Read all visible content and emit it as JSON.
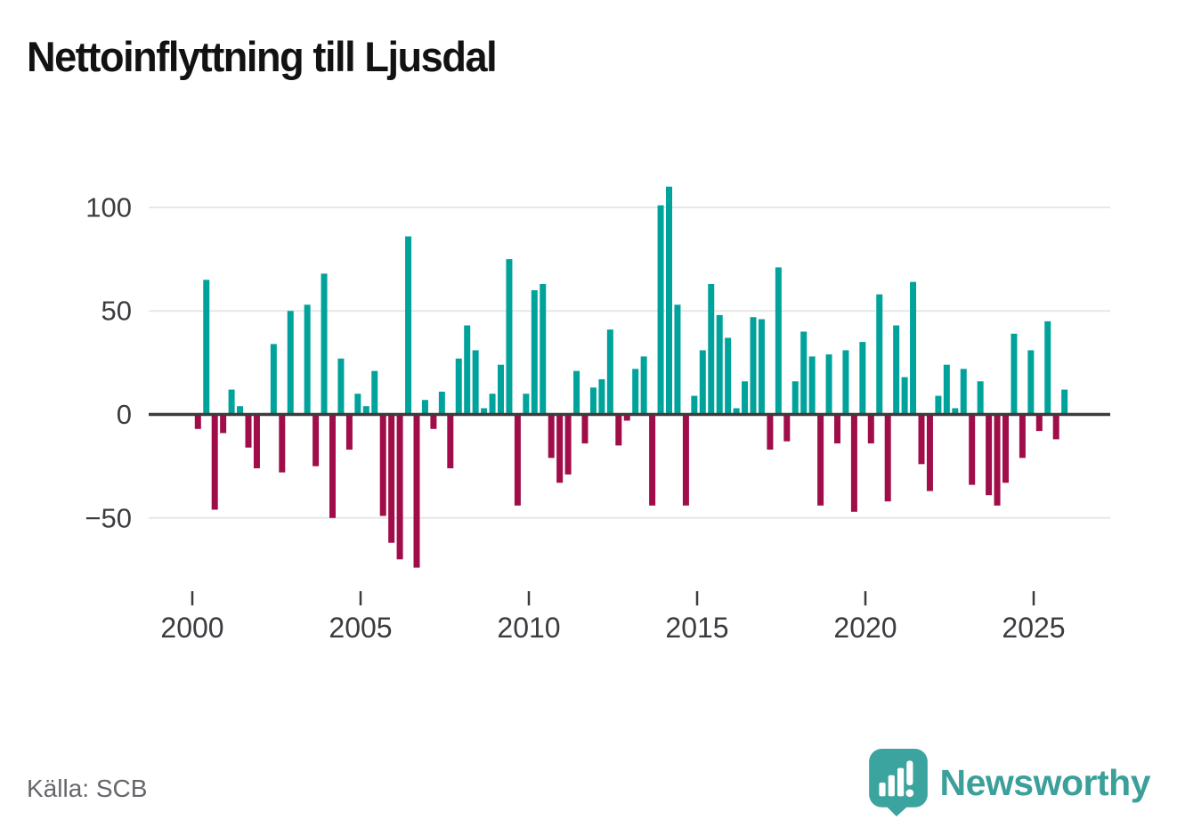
{
  "title": "Nettoinflyttning till Ljusdal",
  "source": "Källa: SCB",
  "logo": {
    "text": "Newsworthy"
  },
  "colors": {
    "positive": "#00a39b",
    "negative": "#a00d48",
    "grid": "#e7e7e7",
    "zero_line": "#3c3c3c",
    "axis_text": "#3c3c40",
    "title": "#121212",
    "source_text": "#66666b",
    "logo_icon": "#3ba49e",
    "logo_text": "#3b9f9a",
    "background": "#ffffff"
  },
  "chart_data": {
    "type": "bar",
    "title": "Nettoinflyttning till Ljusdal",
    "frequency": "quarterly",
    "x_start": "2000Q1",
    "x_end": "2025Q4",
    "values": [
      -7,
      65,
      -46,
      -9,
      12,
      4,
      -16,
      -26,
      0,
      34,
      -28,
      50,
      0,
      53,
      -25,
      68,
      -50,
      27,
      -17,
      10,
      4,
      21,
      -49,
      -62,
      -70,
      86,
      -74,
      7,
      -7,
      11,
      -26,
      27,
      43,
      31,
      3,
      10,
      24,
      75,
      -44,
      10,
      60,
      63,
      -21,
      -33,
      -29,
      21,
      -14,
      13,
      17,
      41,
      -15,
      -3,
      22,
      28,
      -44,
      101,
      110,
      53,
      -44,
      9,
      31,
      63,
      48,
      37,
      3,
      16,
      47,
      46,
      -17,
      71,
      -13,
      16,
      40,
      28,
      -44,
      29,
      -14,
      31,
      -47,
      35,
      -14,
      58,
      -42,
      43,
      18,
      64,
      -24,
      -37,
      9,
      24,
      3,
      22,
      -34,
      16,
      -39,
      -44,
      -33,
      39,
      -21,
      31,
      -8,
      45,
      -12,
      12
    ],
    "x_tick_labels": [
      "2000",
      "2005",
      "2010",
      "2015",
      "2020",
      "2025"
    ],
    "y_ticks": [
      100,
      50,
      0,
      -50
    ],
    "y_tick_labels": [
      "100",
      "50",
      "0",
      "−50"
    ],
    "ylim": [
      -80,
      115
    ],
    "grid": true,
    "legend": "none"
  }
}
